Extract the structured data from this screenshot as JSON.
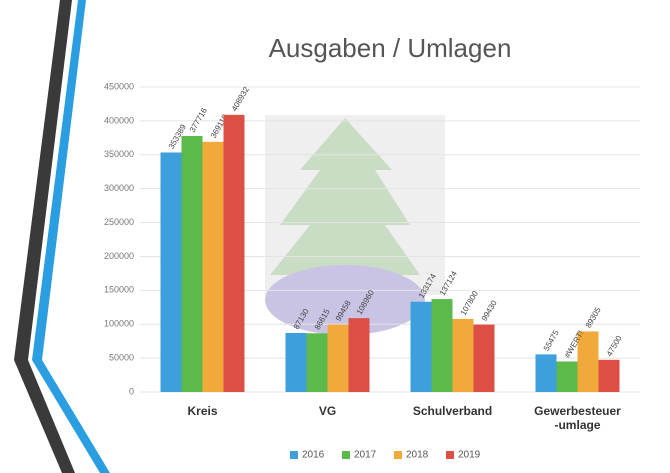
{
  "chart_data": {
    "type": "bar",
    "title": "Ausgaben / Umlagen",
    "categories": [
      "Kreis",
      "VG",
      "Schulverband",
      "Gewerbesteuer\n-umlage"
    ],
    "series": [
      {
        "name": "2016",
        "color": "#3d9fdc",
        "values": [
          353389,
          87130,
          133174,
          55475
        ]
      },
      {
        "name": "2017",
        "color": "#5cba4a",
        "values": [
          377716,
          86615,
          137124,
          45000
        ]
      },
      {
        "name": "2018",
        "color": "#f2a93b",
        "values": [
          369110,
          99458,
          107800,
          89305
        ]
      },
      {
        "name": "2019",
        "color": "#dc4f45",
        "values": [
          408932,
          108960,
          99430,
          47500
        ]
      }
    ],
    "annotations": [
      {
        "text": "#WERT!",
        "category": 3,
        "series": 1
      }
    ],
    "ylim": [
      0,
      450000
    ],
    "yticks": [
      0,
      50000,
      100000,
      150000,
      200000,
      250000,
      300000,
      350000,
      400000,
      450000
    ],
    "grid": true,
    "legend": "bottom"
  }
}
